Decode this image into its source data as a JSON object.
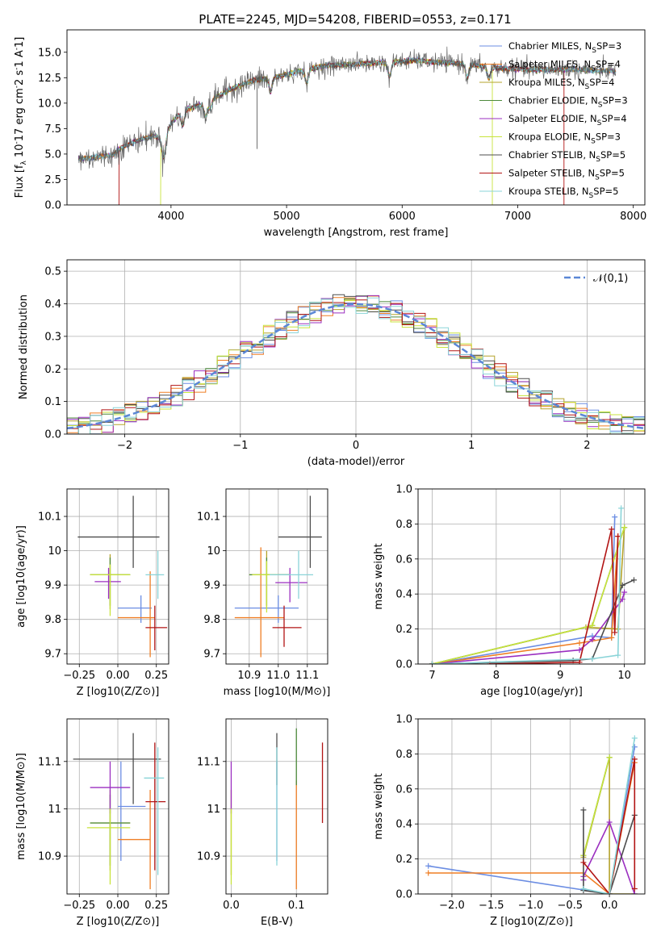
{
  "title": "PLATE=2245, MJD=54208, FIBERID=0553, z=0.171",
  "colors": [
    "#6b8de3",
    "#ef7e24",
    "#b5a32c",
    "#4d8a3c",
    "#9b2fc0",
    "#c8e33c",
    "#4d4d4d",
    "#b21414",
    "#8ad4d8"
  ],
  "models": [
    "Chabrier MILES, N_SSP=3",
    "Salpeter MILES, N_SSP=4",
    "Kroupa MILES, N_SSP=4",
    "Chabrier ELODIE, N_SSP=3",
    "Salpeter ELODIE, N_SSP=4",
    "Kroupa ELODIE, N_SSP=3",
    "Chabrier STELIB, N_SSP=5",
    "Salpeter STELIB, N_SSP=5",
    "Kroupa STELIB, N_SSP=5"
  ],
  "chart_data": [
    {
      "id": "spectrum",
      "type": "line",
      "xlabel": "wavelength [Angstrom, rest frame]",
      "ylabel": "Flux [f_λ 10^-17 erg cm^-2 s^-1 A^-1]",
      "xlim": [
        3100,
        8100
      ],
      "ylim": [
        0,
        17.2
      ],
      "xticks": [
        4000,
        5000,
        6000,
        7000,
        8000
      ],
      "yticks": [
        0,
        2.5,
        5,
        7.5,
        10,
        12.5,
        15
      ],
      "ytick_labels": [
        "0.0",
        "2.5",
        "5.0",
        "7.5",
        "10.0",
        "12.5",
        "15.0"
      ],
      "continuum": [
        [
          3200,
          4.5
        ],
        [
          3500,
          4.9
        ],
        [
          3550,
          5.5
        ],
        [
          3700,
          6.3
        ],
        [
          3850,
          6.8
        ],
        [
          3950,
          6.5
        ],
        [
          4000,
          8.0
        ],
        [
          4100,
          9.3
        ],
        [
          4300,
          10.0
        ],
        [
          4500,
          11.3
        ],
        [
          4700,
          12.2
        ],
        [
          4900,
          12.5
        ],
        [
          5100,
          13.1
        ],
        [
          5300,
          13.6
        ],
        [
          5500,
          13.8
        ],
        [
          5700,
          13.9
        ],
        [
          5900,
          14.0
        ],
        [
          6100,
          14.2
        ],
        [
          6300,
          14.0
        ],
        [
          6500,
          13.9
        ],
        [
          6700,
          13.6
        ],
        [
          6900,
          13.4
        ],
        [
          7100,
          13.3
        ],
        [
          7300,
          13.3
        ],
        [
          7500,
          13.3
        ],
        [
          7700,
          13.2
        ],
        [
          7850,
          13.1
        ]
      ],
      "features": [
        {
          "x": 3934,
          "y": 4.6
        },
        {
          "x": 4102,
          "y": 7.8
        },
        {
          "x": 4300,
          "y": 8.7
        },
        {
          "x": 4340,
          "y": 9.5
        },
        {
          "x": 4861,
          "y": 11.2
        },
        {
          "x": 5175,
          "y": 12.0
        },
        {
          "x": 5890,
          "y": 12.6
        },
        {
          "x": 6563,
          "y": 12.6
        },
        {
          "x": 6750,
          "y": 12.5
        }
      ],
      "model_cutoffs": [
        {
          "model": 7,
          "start": 3550,
          "end": 7400
        },
        {
          "model": 5,
          "start": 3910,
          "end": 6780
        },
        {
          "model": 6,
          "start": 3200,
          "end": 7850
        }
      ],
      "legend_position": "upper right"
    },
    {
      "id": "residuals",
      "type": "histogram",
      "xlabel": "(data-model)/error",
      "ylabel": "Normed distribution",
      "xlim": [
        -2.5,
        2.5
      ],
      "ylim": [
        0,
        0.535
      ],
      "xticks": [
        -2,
        -1,
        0,
        1,
        2
      ],
      "xtick_labels": [
        "−2",
        "−1",
        "0",
        "1",
        "2"
      ],
      "yticks": [
        0,
        0.1,
        0.2,
        0.3,
        0.4,
        0.5
      ],
      "ytick_labels": [
        "0.0",
        "0.1",
        "0.2",
        "0.3",
        "0.4",
        "0.5"
      ],
      "bin_width": 0.1,
      "gaussian_label": "𝒩(0,1)",
      "gaussian_mean": 0,
      "gaussian_sigma": 1,
      "gaussian_color": "#5b87d6"
    },
    {
      "id": "age_vs_Z",
      "type": "errorbar",
      "xlabel": "Z [log10(Z/Z⊙)]",
      "ylabel": "age  [log10(age/yr)]",
      "xlim": [
        -0.33,
        0.33
      ],
      "ylim": [
        9.67,
        10.18
      ],
      "xticks": [
        -0.25,
        0,
        0.25
      ],
      "xtick_labels": [
        "−0.25",
        "0.00",
        "0.25"
      ],
      "yticks": [
        9.7,
        9.8,
        9.9,
        10.0,
        10.1
      ],
      "points": [
        {
          "m": 0,
          "x": 0.15,
          "xl": 0.0,
          "xh": 0.22,
          "y": 9.833,
          "yl": 9.79,
          "yh": 9.87
        },
        {
          "m": 1,
          "x": 0.21,
          "xl": 0.0,
          "xh": 0.24,
          "y": 9.805,
          "yl": 9.69,
          "yh": 9.94
        },
        {
          "m": 2,
          "x": -0.05,
          "xl": -0.18,
          "xh": 0.08,
          "y": 9.93,
          "yl": 9.83,
          "yh": 9.99
        },
        {
          "m": 3,
          "x": -0.05,
          "xl": -0.18,
          "xh": 0.08,
          "y": 9.93,
          "yl": 9.84,
          "yh": 9.98
        },
        {
          "m": 4,
          "x": -0.06,
          "xl": -0.15,
          "xh": 0.02,
          "y": 9.91,
          "yl": 9.86,
          "yh": 9.95
        },
        {
          "m": 5,
          "x": -0.05,
          "xl": -0.18,
          "xh": 0.08,
          "y": 9.93,
          "yl": 9.81,
          "yh": 9.96
        },
        {
          "m": 6,
          "x": 0.1,
          "xl": -0.26,
          "xh": 0.27,
          "y": 10.04,
          "yl": 9.95,
          "yh": 10.16
        },
        {
          "m": 7,
          "x": 0.24,
          "xl": 0.18,
          "xh": 0.32,
          "y": 9.776,
          "yl": 9.71,
          "yh": 9.84
        },
        {
          "m": 8,
          "x": 0.26,
          "xl": 0.18,
          "xh": 0.3,
          "y": 9.93,
          "yl": 9.86,
          "yh": 10.0
        }
      ]
    },
    {
      "id": "age_vs_mass",
      "type": "errorbar",
      "xlabel": "mass [log10(M/M⊙)]",
      "ylabel": "",
      "xlim": [
        10.82,
        11.17
      ],
      "ylim": [
        9.67,
        10.18
      ],
      "xticks": [
        10.9,
        11.0,
        11.1
      ],
      "xtick_labels": [
        "10.9",
        "11.0",
        "11.1"
      ],
      "yticks": [
        9.7,
        9.8,
        9.9,
        10.0,
        10.1
      ],
      "points": [
        {
          "m": 0,
          "x": 11.0,
          "xl": 10.85,
          "xh": 11.07,
          "y": 9.833,
          "yl": 9.79,
          "yh": 9.87
        },
        {
          "m": 1,
          "x": 10.94,
          "xl": 10.85,
          "xh": 11.02,
          "y": 9.805,
          "yl": 9.69,
          "yh": 10.01
        },
        {
          "m": 2,
          "x": 10.96,
          "xl": 10.9,
          "xh": 11.04,
          "y": 9.93,
          "yl": 9.83,
          "yh": 10.0
        },
        {
          "m": 3,
          "x": 10.96,
          "xl": 10.9,
          "xh": 11.04,
          "y": 9.93,
          "yl": 9.84,
          "yh": 9.98
        },
        {
          "m": 4,
          "x": 11.04,
          "xl": 10.99,
          "xh": 11.1,
          "y": 9.907,
          "yl": 9.85,
          "yh": 9.95
        },
        {
          "m": 5,
          "x": 10.96,
          "xl": 10.91,
          "xh": 11.0,
          "y": 9.93,
          "yl": 9.82,
          "yh": 9.97
        },
        {
          "m": 6,
          "x": 11.11,
          "xl": 11.0,
          "xh": 11.15,
          "y": 10.04,
          "yl": 9.95,
          "yh": 10.16
        },
        {
          "m": 7,
          "x": 11.02,
          "xl": 10.98,
          "xh": 11.08,
          "y": 9.776,
          "yl": 9.72,
          "yh": 9.84
        },
        {
          "m": 8,
          "x": 11.07,
          "xl": 10.97,
          "xh": 11.12,
          "y": 9.93,
          "yl": 9.86,
          "yh": 10.0
        }
      ]
    },
    {
      "id": "massweight_vs_age",
      "type": "line",
      "xlabel": "age  [log10(age/yr)]",
      "ylabel": "mass weight",
      "xlim": [
        6.78,
        10.32
      ],
      "ylim": [
        0,
        1
      ],
      "xticks": [
        7,
        8,
        9,
        10
      ],
      "yticks": [
        0,
        0.2,
        0.4,
        0.6,
        0.8,
        1.0
      ],
      "ytick_labels": [
        "0.0",
        "0.2",
        "0.4",
        "0.6",
        "0.8",
        "1.0"
      ],
      "series": [
        {
          "m": 0,
          "x": [
            7.0,
            9.5,
            9.8,
            9.85
          ],
          "y": [
            0.0,
            0.16,
            0.15,
            0.84
          ]
        },
        {
          "m": 1,
          "x": [
            7.0,
            9.3,
            9.8,
            9.9
          ],
          "y": [
            0.0,
            0.12,
            0.15,
            0.73
          ]
        },
        {
          "m": 2,
          "x": [
            7.0,
            9.4,
            9.9,
            10.0
          ],
          "y": [
            0.0,
            0.21,
            0.2,
            0.78
          ]
        },
        {
          "m": 3,
          "x": [
            7.0,
            9.5,
            10.0
          ],
          "y": [
            0.0,
            0.22,
            0.78
          ]
        },
        {
          "m": 4,
          "x": [
            7.0,
            9.3,
            9.5,
            9.97,
            10.0
          ],
          "y": [
            0.0,
            0.08,
            0.14,
            0.37,
            0.41
          ]
        },
        {
          "m": 5,
          "x": [
            7.0,
            9.5,
            10.0
          ],
          "y": [
            0.0,
            0.22,
            0.78
          ]
        },
        {
          "m": 6,
          "x": [
            7.0,
            9.2,
            9.5,
            9.97,
            10.15
          ],
          "y": [
            0.0,
            0.02,
            0.03,
            0.45,
            0.48
          ]
        },
        {
          "m": 7,
          "x": [
            7.9,
            9.3,
            9.8,
            9.85,
            9.9
          ],
          "y": [
            0.0,
            0.01,
            0.77,
            0.18,
            0.73
          ]
        },
        {
          "m": 8,
          "x": [
            7.0,
            9.5,
            9.9,
            9.95
          ],
          "y": [
            0.0,
            0.03,
            0.05,
            0.89
          ]
        }
      ]
    },
    {
      "id": "mass_vs_Z",
      "type": "errorbar",
      "xlabel": "Z [log10(Z/Z⊙)]",
      "ylabel": "mass [log10(M/M⊙)]",
      "xlim": [
        -0.33,
        0.33
      ],
      "ylim": [
        10.82,
        11.19
      ],
      "xticks": [
        -0.25,
        0,
        0.25
      ],
      "xtick_labels": [
        "−0.25",
        "0.00",
        "0.25"
      ],
      "yticks": [
        10.9,
        11.0,
        11.1
      ],
      "points": [
        {
          "m": 0,
          "x": 0.02,
          "xl": 0.0,
          "xh": 0.18,
          "y": 11.005,
          "yl": 10.89,
          "yh": 11.1
        },
        {
          "m": 1,
          "x": 0.21,
          "xl": 0.0,
          "xh": 0.21,
          "y": 10.935,
          "yl": 10.83,
          "yh": 11.04
        },
        {
          "m": 2,
          "x": -0.05,
          "xl": -0.18,
          "xh": 0.08,
          "y": 10.97,
          "yl": 10.87,
          "yh": 11.04
        },
        {
          "m": 3,
          "x": -0.05,
          "xl": -0.18,
          "xh": 0.08,
          "y": 10.97,
          "yl": 10.88,
          "yh": 11.03
        },
        {
          "m": 4,
          "x": -0.05,
          "xl": -0.18,
          "xh": 0.08,
          "y": 11.045,
          "yl": 10.99,
          "yh": 11.1
        },
        {
          "m": 5,
          "x": -0.05,
          "xl": -0.2,
          "xh": 0.08,
          "y": 10.96,
          "yl": 10.84,
          "yh": 11.0
        },
        {
          "m": 6,
          "x": 0.1,
          "xl": -0.29,
          "xh": 0.28,
          "y": 11.105,
          "yl": 11.01,
          "yh": 11.16
        },
        {
          "m": 7,
          "x": 0.24,
          "xl": 0.18,
          "xh": 0.31,
          "y": 11.015,
          "yl": 10.87,
          "yh": 11.14
        },
        {
          "m": 8,
          "x": 0.26,
          "xl": 0.17,
          "xh": 0.3,
          "y": 11.065,
          "yl": 10.86,
          "yh": 11.13
        }
      ]
    },
    {
      "id": "mass_vs_EBV",
      "type": "errorbar",
      "xlabel": "E(B-V)",
      "ylabel": "",
      "xlim": [
        -0.008,
        0.148
      ],
      "ylim": [
        10.82,
        11.19
      ],
      "xticks": [
        0.0,
        0.1
      ],
      "xtick_labels": [
        "0.0",
        "0.1"
      ],
      "yticks": [
        10.9,
        11.0,
        11.1
      ],
      "points": [
        {
          "m": 0,
          "x": 0.07,
          "y": 11.005,
          "yl": 10.89,
          "yh": 11.1
        },
        {
          "m": 1,
          "x": 0.1,
          "y": 10.935,
          "yl": 10.83,
          "yh": 11.06
        },
        {
          "m": 2,
          "x": 0.0,
          "y": 10.97,
          "yl": 10.86,
          "yh": 11.04
        },
        {
          "m": 4,
          "x": 0.0,
          "y": 11.0,
          "yl": 10.99,
          "yh": 11.1
        },
        {
          "m": 5,
          "x": 0.0,
          "y": 10.97,
          "yl": 10.84,
          "yh": 11.0
        },
        {
          "m": 6,
          "x": 0.07,
          "y": 11.11,
          "yl": 11.05,
          "yh": 11.16
        },
        {
          "m": 7,
          "x": 0.14,
          "y": 11.05,
          "yl": 10.97,
          "yh": 11.14
        },
        {
          "m": 8,
          "x": 0.07,
          "y": 11.065,
          "yl": 10.88,
          "yh": 11.13
        },
        {
          "m": 3,
          "x": 0.1,
          "y": 11.1,
          "yl": 11.05,
          "yh": 11.17
        }
      ]
    },
    {
      "id": "massweight_vs_Z",
      "type": "line",
      "xlabel": "Z [log10(Z/Z⊙)]",
      "ylabel": "mass weight",
      "xlim": [
        -2.43,
        0.45
      ],
      "ylim": [
        0,
        1
      ],
      "xticks": [
        -2.0,
        -1.5,
        -1.0,
        -0.5,
        0.0
      ],
      "xtick_labels": [
        "−2.0",
        "−1.5",
        "−1.0",
        "−0.5",
        "0.0"
      ],
      "yticks": [
        0,
        0.2,
        0.4,
        0.6,
        0.8,
        1.0
      ],
      "ytick_labels": [
        "0.0",
        "0.2",
        "0.4",
        "0.6",
        "0.8",
        "1.0"
      ],
      "series": [
        {
          "m": 0,
          "x": [
            -2.3,
            0.0,
            0.32
          ],
          "y": [
            0.16,
            0.0,
            0.84
          ]
        },
        {
          "m": 1,
          "x": [
            -2.3,
            -0.33,
            0.0,
            0.32
          ],
          "y": [
            0.12,
            0.12,
            0.0,
            0.75
          ]
        },
        {
          "m": 2,
          "x": [
            -0.33,
            0.0,
            0.0,
            0.32
          ],
          "y": [
            0.21,
            0.78,
            0.0,
            0.0
          ]
        },
        {
          "m": 3,
          "x": [
            -0.33,
            0.0
          ],
          "y": [
            0.22,
            0.78
          ]
        },
        {
          "m": 4,
          "x": [
            -0.33,
            -0.33,
            0.0,
            0.32
          ],
          "y": [
            0.08,
            0.1,
            0.41,
            0.0
          ]
        },
        {
          "m": 5,
          "x": [
            -0.33,
            0.0
          ],
          "y": [
            0.22,
            0.78
          ]
        },
        {
          "m": 6,
          "x": [
            -0.33,
            -0.33,
            0.0,
            0.32
          ],
          "y": [
            0.48,
            0.02,
            0.0,
            0.45
          ]
        },
        {
          "m": 7,
          "x": [
            -0.33,
            0.0,
            0.32,
            0.32
          ],
          "y": [
            0.18,
            0.0,
            0.77,
            0.03
          ]
        },
        {
          "m": 8,
          "x": [
            -0.33,
            0.0,
            0.32
          ],
          "y": [
            0.03,
            0.0,
            0.89
          ]
        }
      ]
    }
  ]
}
